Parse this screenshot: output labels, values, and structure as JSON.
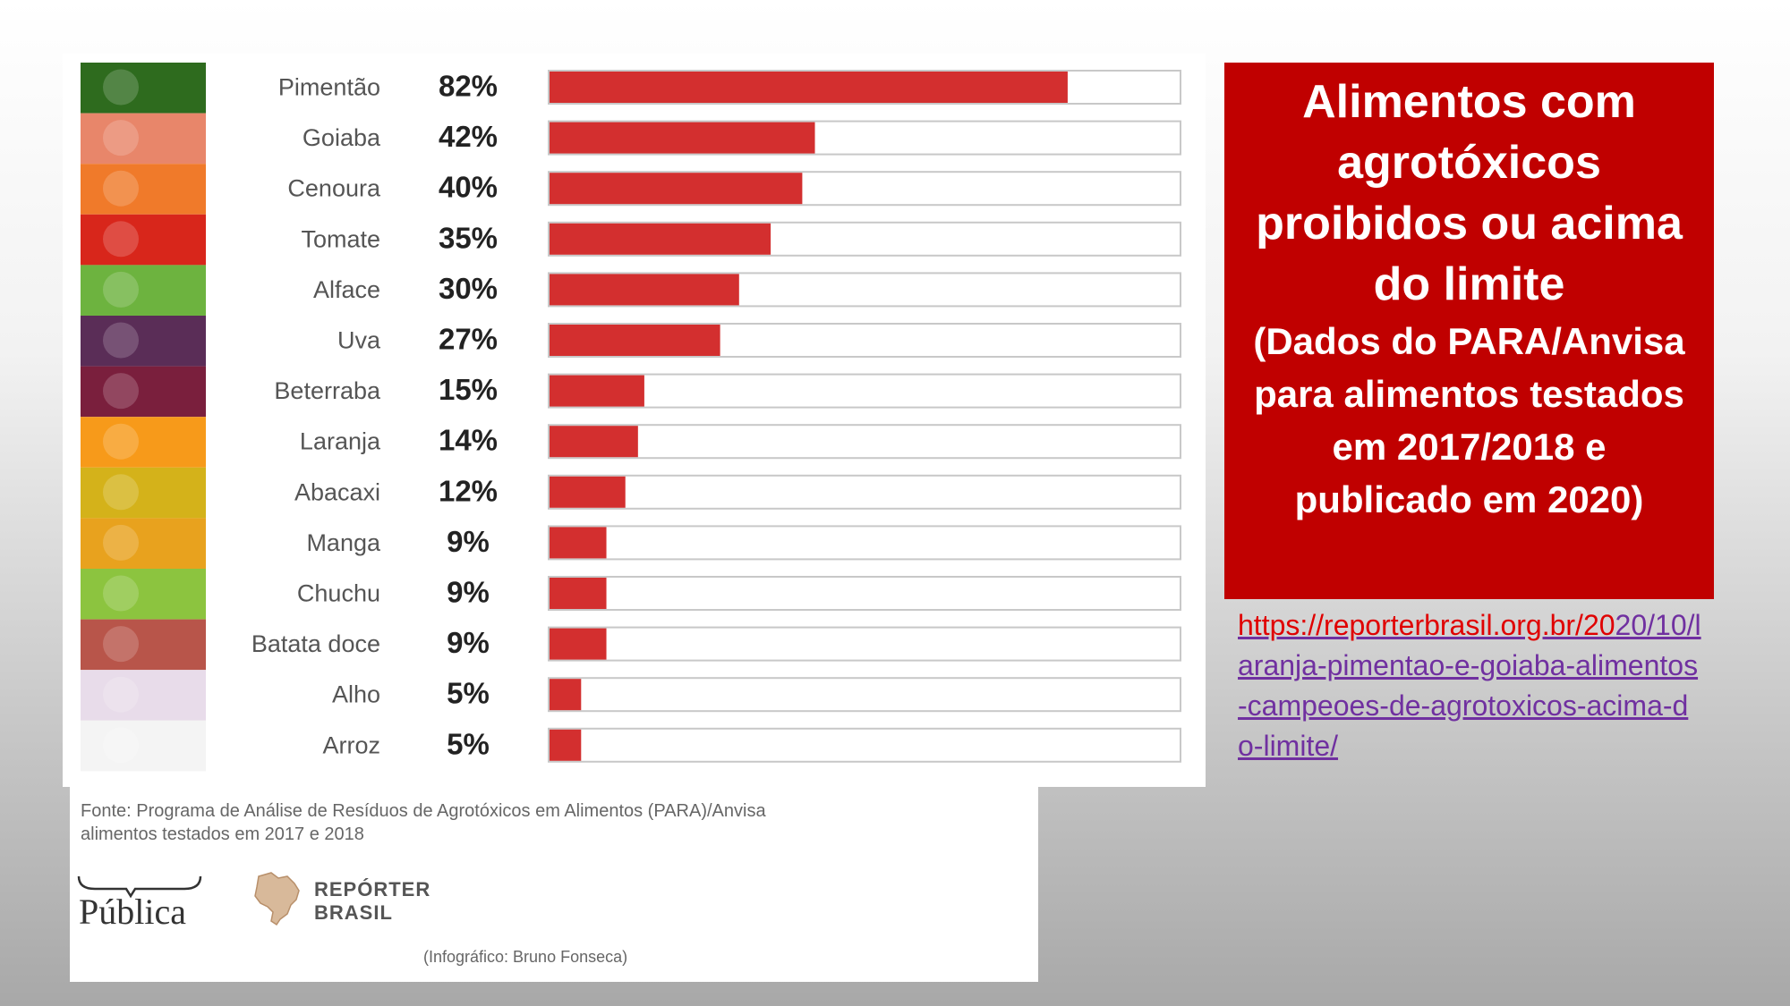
{
  "chart_data": {
    "type": "bar",
    "orientation": "horizontal",
    "categories": [
      "Pimentão",
      "Goiaba",
      "Cenoura",
      "Tomate",
      "Alface",
      "Uva",
      "Beterraba",
      "Laranja",
      "Abacaxi",
      "Manga",
      "Chuchu",
      "Batata doce",
      "Alho",
      "Arroz"
    ],
    "values": [
      82,
      42,
      40,
      35,
      30,
      27,
      15,
      14,
      12,
      9,
      9,
      9,
      5,
      5
    ],
    "value_labels": [
      "82%",
      "42%",
      "40%",
      "35%",
      "30%",
      "27%",
      "15%",
      "14%",
      "12%",
      "9%",
      "9%",
      "9%",
      "5%",
      "5%"
    ],
    "xlim": [
      0,
      100
    ],
    "bar_color": "#d32f2f",
    "track_color": "#ffffff"
  },
  "source_note": {
    "line1": "Fonte: Programa de Análise de Resíduos de Agrotóxicos em Alimentos (PARA)/Anvisa",
    "line2": "alimentos testados em 2017 e 2018"
  },
  "logos": {
    "publica": "Pública",
    "reporter_line1": "REPÓRTER",
    "reporter_line2": "BRASIL"
  },
  "credit": "(Infográfico: Bruno Fonseca)",
  "title_box": {
    "main": "Alimentos com agrotóxicos proibidos ou acima do limite",
    "sub": "(Dados do PARA/Anvisa para alimentos testados em 2017/2018 e publicado em 2020)",
    "bg_color": "#c00000"
  },
  "link": {
    "first": "https://reporterbrasil.org.br/20",
    "rest": "20/10/laranja-pimentao-e-goiaba-alimentos-campeoes-de-agrotoxicos-acima-do-limite/"
  },
  "food_colors": [
    "#2e6b1e",
    "#e8866a",
    "#f07a2a",
    "#d8261b",
    "#6db33f",
    "#5a2d57",
    "#7a1f3d",
    "#f79a1a",
    "#d4b21a",
    "#e8a21e",
    "#8cc43f",
    "#b8554a",
    "#e8dcea",
    "#f4f4f4"
  ]
}
